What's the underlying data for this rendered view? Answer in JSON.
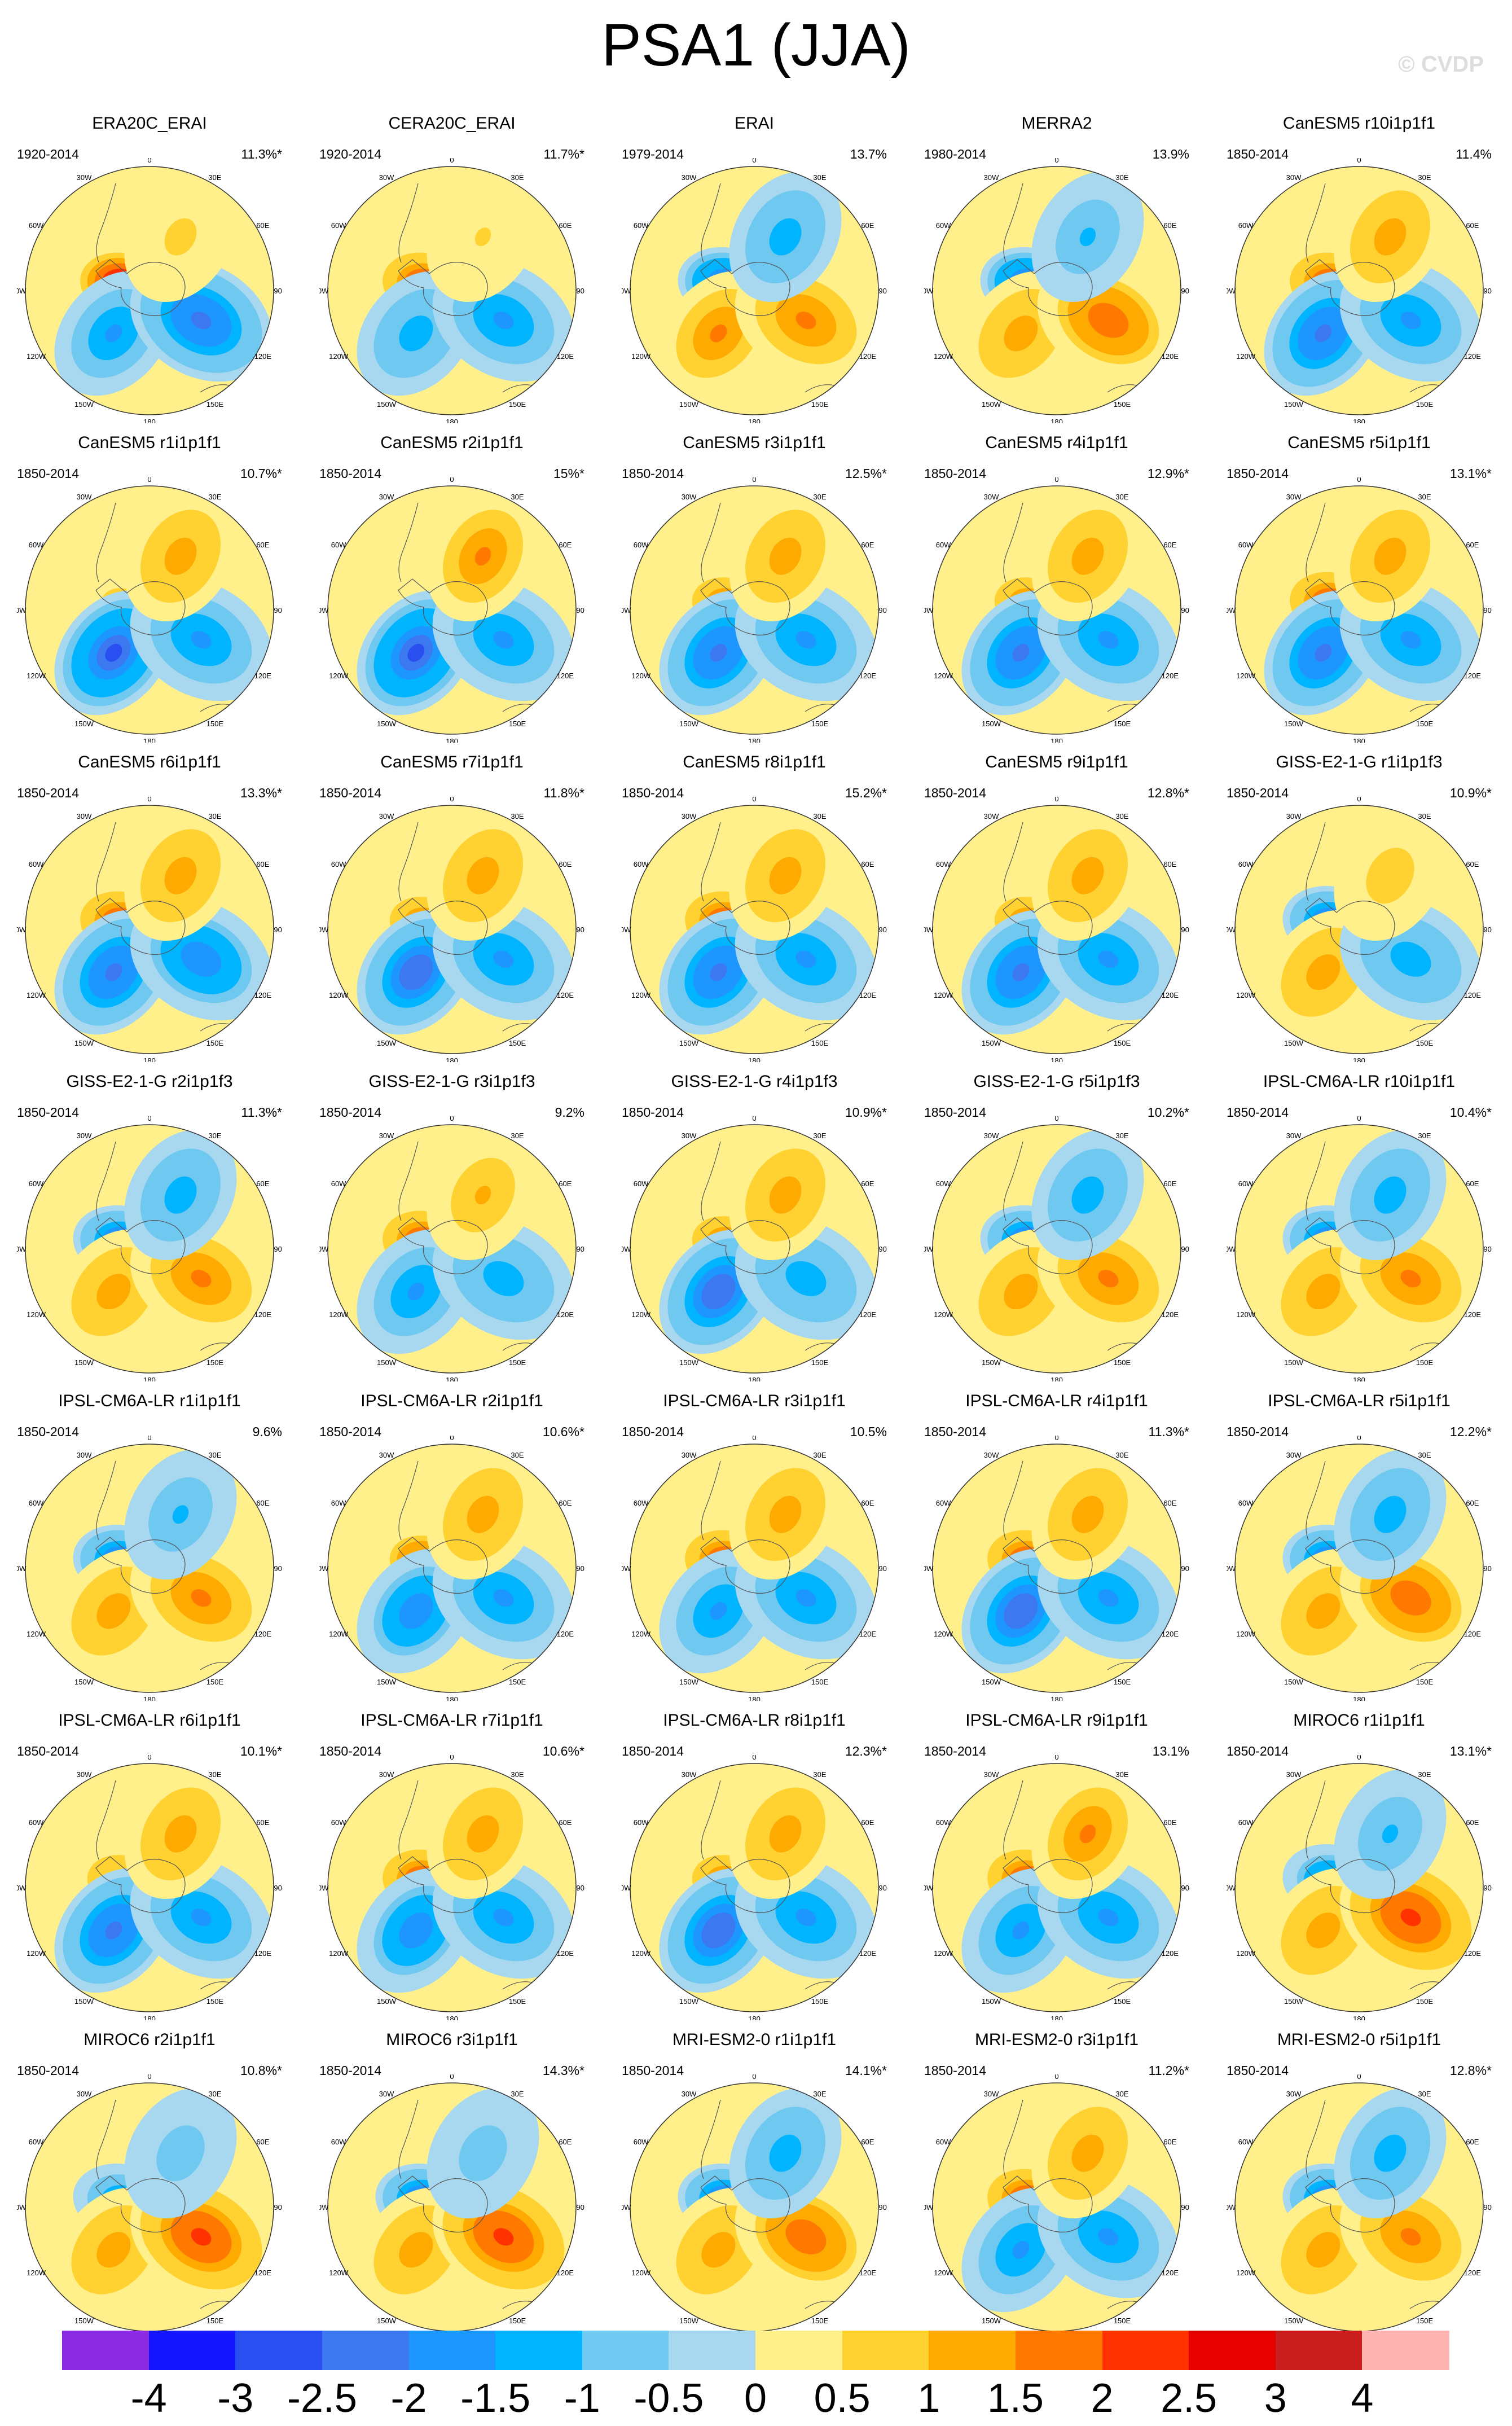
{
  "title": "PSA1 (JJA)",
  "watermark": "© CVDP",
  "lon_labels": {
    "l0": "0",
    "l30e": "30E",
    "l60e": "60E",
    "l90e": "90E",
    "l120e": "120E",
    "l150e": "150E",
    "l180": "180",
    "l150w": "150W",
    "l120w": "120W",
    "l90w": "90W",
    "l60w": "60W",
    "l30w": "30W"
  },
  "panels": [
    {
      "name": "ERA20C_ERAI",
      "years": "1920-2014",
      "pct": "11.3%*",
      "pattern": [
        3.5,
        -2.0,
        -2.5,
        0.8
      ]
    },
    {
      "name": "CERA20C_ERAI",
      "years": "1920-2014",
      "pct": "11.7%*",
      "pattern": [
        2.8,
        -1.5,
        -2.0,
        0.6
      ]
    },
    {
      "name": "ERAI",
      "years": "1979-2014",
      "pct": "13.7%",
      "pattern": [
        -3.0,
        1.8,
        2.0,
        -1.5
      ]
    },
    {
      "name": "MERRA2",
      "years": "1980-2014",
      "pct": "13.9%",
      "pattern": [
        -3.0,
        1.5,
        2.2,
        -1.2
      ]
    },
    {
      "name": "CanESM5 r10i1p1f1",
      "years": "1850-2014",
      "pct": "11.4%",
      "pattern": [
        2.5,
        -2.5,
        -2.0,
        1.5
      ]
    },
    {
      "name": "CanESM5 r1i1p1f1",
      "years": "1850-2014",
      "pct": "10.7%*",
      "pattern": [
        1.0,
        -3.0,
        -2.0,
        1.5
      ]
    },
    {
      "name": "CanESM5 r2i1p1f1",
      "years": "1850-2014",
      "pct": "15%*",
      "pattern": [
        0.8,
        -3.0,
        -1.8,
        1.8
      ]
    },
    {
      "name": "CanESM5 r3i1p1f1",
      "years": "1850-2014",
      "pct": "12.5%*",
      "pattern": [
        2.0,
        -2.5,
        -2.0,
        1.5
      ]
    },
    {
      "name": "CanESM5 r4i1p1f1",
      "years": "1850-2014",
      "pct": "12.9%*",
      "pattern": [
        2.0,
        -2.5,
        -2.0,
        1.5
      ]
    },
    {
      "name": "CanESM5 r5i1p1f1",
      "years": "1850-2014",
      "pct": "13.1%*",
      "pattern": [
        2.5,
        -2.5,
        -2.0,
        1.5
      ]
    },
    {
      "name": "CanESM5 r6i1p1f1",
      "years": "1850-2014",
      "pct": "13.3%*",
      "pattern": [
        2.8,
        -2.5,
        -2.2,
        1.5
      ]
    },
    {
      "name": "CanESM5 r7i1p1f1",
      "years": "1850-2014",
      "pct": "11.8%*",
      "pattern": [
        2.0,
        -2.8,
        -2.0,
        1.5
      ]
    },
    {
      "name": "CanESM5 r8i1p1f1",
      "years": "1850-2014",
      "pct": "15.2%*",
      "pattern": [
        2.5,
        -2.5,
        -2.0,
        1.5
      ]
    },
    {
      "name": "CanESM5 r9i1p1f1",
      "years": "1850-2014",
      "pct": "12.8%*",
      "pattern": [
        2.0,
        -2.5,
        -2.0,
        1.5
      ]
    },
    {
      "name": "GISS-E2-1-G r1i1p1f3",
      "years": "1850-2014",
      "pct": "10.9%*",
      "pattern": [
        -2.5,
        1.5,
        -1.5,
        1.0
      ]
    },
    {
      "name": "GISS-E2-1-G r2i1p1f3",
      "years": "1850-2014",
      "pct": "11.3%*",
      "pattern": [
        -2.5,
        1.5,
        2.0,
        -1.5
      ]
    },
    {
      "name": "GISS-E2-1-G r3i1p1f3",
      "years": "1850-2014",
      "pct": "9.2%",
      "pattern": [
        2.8,
        -2.0,
        -1.5,
        1.2
      ]
    },
    {
      "name": "GISS-E2-1-G r4i1p1f3",
      "years": "1850-2014",
      "pct": "10.9%*",
      "pattern": [
        2.0,
        -2.8,
        -1.5,
        1.5
      ]
    },
    {
      "name": "GISS-E2-1-G r5i1p1f3",
      "years": "1850-2014",
      "pct": "10.2%*",
      "pattern": [
        -2.5,
        1.5,
        1.8,
        -1.5
      ]
    },
    {
      "name": "IPSL-CM6A-LR r10i1p1f1",
      "years": "1850-2014",
      "pct": "10.4%*",
      "pattern": [
        -2.5,
        1.5,
        1.8,
        -1.5
      ]
    },
    {
      "name": "IPSL-CM6A-LR r1i1p1f1",
      "years": "1850-2014",
      "pct": "9.6%",
      "pattern": [
        -2.5,
        1.5,
        1.8,
        -1.2
      ]
    },
    {
      "name": "IPSL-CM6A-LR r2i1p1f1",
      "years": "1850-2014",
      "pct": "10.6%*",
      "pattern": [
        2.2,
        -2.2,
        -2.0,
        1.5
      ]
    },
    {
      "name": "IPSL-CM6A-LR r3i1p1f1",
      "years": "1850-2014",
      "pct": "10.5%",
      "pattern": [
        2.8,
        -2.0,
        -2.0,
        1.5
      ]
    },
    {
      "name": "IPSL-CM6A-LR r4i1p1f1",
      "years": "1850-2014",
      "pct": "11.3%*",
      "pattern": [
        2.5,
        -2.8,
        -1.8,
        1.5
      ]
    },
    {
      "name": "IPSL-CM6A-LR r5i1p1f1",
      "years": "1850-2014",
      "pct": "12.2%*",
      "pattern": [
        -2.8,
        1.5,
        2.2,
        -1.5
      ]
    },
    {
      "name": "IPSL-CM6A-LR r6i1p1f1",
      "years": "1850-2014",
      "pct": "10.1%*",
      "pattern": [
        1.5,
        -2.5,
        -2.0,
        1.5
      ]
    },
    {
      "name": "IPSL-CM6A-LR r7i1p1f1",
      "years": "1850-2014",
      "pct": "10.6%*",
      "pattern": [
        2.5,
        -2.2,
        -2.0,
        1.5
      ]
    },
    {
      "name": "IPSL-CM6A-LR r8i1p1f1",
      "years": "1850-2014",
      "pct": "12.3%*",
      "pattern": [
        2.0,
        -2.8,
        -2.0,
        1.5
      ]
    },
    {
      "name": "IPSL-CM6A-LR r9i1p1f1",
      "years": "1850-2014",
      "pct": "13.1%",
      "pattern": [
        2.8,
        -2.0,
        -2.0,
        1.8
      ]
    },
    {
      "name": "MIROC6 r1i1p1f1",
      "years": "1850-2014",
      "pct": "13.1%*",
      "pattern": [
        -2.2,
        1.5,
        2.5,
        -1.2
      ]
    },
    {
      "name": "MIROC6 r2i1p1f1",
      "years": "1850-2014",
      "pct": "10.8%*",
      "pattern": [
        -2.0,
        1.5,
        2.5,
        -1.0
      ]
    },
    {
      "name": "MIROC6 r3i1p1f1",
      "years": "1850-2014",
      "pct": "14.3%*",
      "pattern": [
        -2.5,
        1.5,
        2.5,
        -1.0
      ]
    },
    {
      "name": "MRI-ESM2-0 r1i1p1f1",
      "years": "1850-2014",
      "pct": "14.1%*",
      "pattern": [
        -2.5,
        1.5,
        2.2,
        -1.5
      ]
    },
    {
      "name": "MRI-ESM2-0 r3i1p1f1",
      "years": "1850-2014",
      "pct": "11.2%*",
      "pattern": [
        2.8,
        -2.0,
        -2.0,
        1.5
      ]
    },
    {
      "name": "MRI-ESM2-0 r5i1p1f1",
      "years": "1850-2014",
      "pct": "12.8%*",
      "pattern": [
        -2.5,
        1.5,
        2.0,
        -1.5
      ]
    }
  ],
  "colorbar": {
    "levels": [
      "-4",
      "-3",
      "-2.5",
      "-2",
      "-1.5",
      "-1",
      "-0.5",
      "0",
      "0.5",
      "1",
      "1.5",
      "2",
      "2.5",
      "3",
      "4"
    ],
    "colors": [
      "#8a2be2",
      "#1414ff",
      "#2a4ff0",
      "#3c78f0",
      "#1e96ff",
      "#00b4ff",
      "#6ec8f0",
      "#a8d8f0",
      "#fff08c",
      "#ffd232",
      "#ffaa00",
      "#ff7800",
      "#ff3200",
      "#e60000",
      "#c81e1e",
      "#ffb4b4"
    ]
  }
}
